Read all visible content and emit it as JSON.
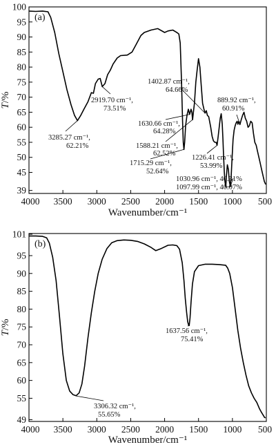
{
  "chart_data": [
    {
      "type": "line",
      "panel_label": "(a)",
      "xlabel": "Wavenumber/cm⁻¹",
      "ylabel_italic": "T",
      "ylabel_unit": "/%",
      "xlim": [
        4000,
        500
      ],
      "ylim": [
        38,
        100
      ],
      "x_reversed": true,
      "grid": false,
      "x_ticks": [
        4000,
        3500,
        3000,
        2500,
        2000,
        1500,
        1000,
        500
      ],
      "y_ticks": [
        39,
        45,
        50,
        55,
        60,
        65,
        70,
        75,
        80,
        85,
        90,
        95,
        100
      ],
      "series": [
        {
          "points": [
            [
              4000,
              98.6
            ],
            [
              3900,
              98.5
            ],
            [
              3800,
              98.6
            ],
            [
              3720,
              98.4
            ],
            [
              3680,
              96.5
            ],
            [
              3620,
              91.5
            ],
            [
              3560,
              84.5
            ],
            [
              3500,
              78.5
            ],
            [
              3440,
              72.5
            ],
            [
              3380,
              67.5
            ],
            [
              3330,
              64.0
            ],
            [
              3285,
              62.2
            ],
            [
              3240,
              63.8
            ],
            [
              3190,
              66.0
            ],
            [
              3130,
              68.5
            ],
            [
              3080,
              71.5
            ],
            [
              3050,
              71.3
            ],
            [
              3020,
              74.5
            ],
            [
              2980,
              76.0
            ],
            [
              2950,
              76.2
            ],
            [
              2919,
              73.5
            ],
            [
              2880,
              74.5
            ],
            [
              2840,
              77.5
            ],
            [
              2800,
              79.0
            ],
            [
              2760,
              81.0
            ],
            [
              2700,
              83.0
            ],
            [
              2650,
              83.8
            ],
            [
              2550,
              84.0
            ],
            [
              2480,
              85.0
            ],
            [
              2420,
              87.5
            ],
            [
              2350,
              90.5
            ],
            [
              2300,
              91.5
            ],
            [
              2200,
              92.3
            ],
            [
              2100,
              92.8
            ],
            [
              2000,
              91.5
            ],
            [
              1950,
              92.0
            ],
            [
              1880,
              92.3
            ],
            [
              1820,
              91.5
            ],
            [
              1790,
              91.0
            ],
            [
              1770,
              88.0
            ],
            [
              1750,
              75.0
            ],
            [
              1735,
              62.0
            ],
            [
              1725,
              55.0
            ],
            [
              1715,
              52.6
            ],
            [
              1705,
              55.0
            ],
            [
              1690,
              60.5
            ],
            [
              1670,
              64.0
            ],
            [
              1650,
              66.0
            ],
            [
              1631,
              64.3
            ],
            [
              1610,
              66.0
            ],
            [
              1598,
              65.0
            ],
            [
              1588,
              62.5
            ],
            [
              1575,
              65.0
            ],
            [
              1560,
              68.0
            ],
            [
              1540,
              75.0
            ],
            [
              1520,
              79.0
            ],
            [
              1500,
              82.8
            ],
            [
              1480,
              80.0
            ],
            [
              1460,
              74.0
            ],
            [
              1440,
              68.0
            ],
            [
              1420,
              66.0
            ],
            [
              1403,
              64.7
            ],
            [
              1385,
              65.5
            ],
            [
              1370,
              64.0
            ],
            [
              1350,
              63.5
            ],
            [
              1320,
              60.0
            ],
            [
              1300,
              57.0
            ],
            [
              1280,
              55.5
            ],
            [
              1260,
              55.0
            ],
            [
              1240,
              55.0
            ],
            [
              1226,
              54.0
            ],
            [
              1210,
              57.0
            ],
            [
              1195,
              60.0
            ],
            [
              1180,
              63.0
            ],
            [
              1165,
              64.5
            ],
            [
              1150,
              61.0
            ],
            [
              1140,
              56.0
            ],
            [
              1130,
              50.0
            ],
            [
              1120,
              45.0
            ],
            [
              1110,
              42.0
            ],
            [
              1098,
              40.1
            ],
            [
              1088,
              44.0
            ],
            [
              1075,
              47.5
            ],
            [
              1060,
              46.0
            ],
            [
              1045,
              42.0
            ],
            [
              1031,
              40.3
            ],
            [
              1018,
              44.0
            ],
            [
              1005,
              50.0
            ],
            [
              990,
              56.0
            ],
            [
              975,
              59.0
            ],
            [
              960,
              60.5
            ],
            [
              945,
              61.5
            ],
            [
              930,
              62.0
            ],
            [
              920,
              61.0
            ],
            [
              905,
              62.0
            ],
            [
              890,
              60.9
            ],
            [
              870,
              62.5
            ],
            [
              850,
              64.0
            ],
            [
              830,
              65.0
            ],
            [
              810,
              63.0
            ],
            [
              790,
              62.0
            ],
            [
              770,
              60.0
            ],
            [
              750,
              60.5
            ],
            [
              730,
              62.0
            ],
            [
              710,
              61.5
            ],
            [
              690,
              58.0
            ],
            [
              670,
              55.0
            ],
            [
              650,
              54.0
            ],
            [
              630,
              52.0
            ],
            [
              610,
              50.0
            ],
            [
              590,
              48.0
            ],
            [
              570,
              46.0
            ],
            [
              550,
              44.0
            ],
            [
              530,
              42.0
            ],
            [
              510,
              41.0
            ]
          ]
        }
      ],
      "annotations": [
        {
          "line1": "3285.27 cm⁻¹,",
          "line2": "62.21%"
        },
        {
          "line1": "2919.70 cm⁻¹,",
          "line2": "73.51%"
        },
        {
          "line1": "1402.87 cm⁻¹,",
          "line2": "64.66%"
        },
        {
          "line1": "1630.66 cm⁻¹,",
          "line2": "64.28%"
        },
        {
          "line1": "1588.21 cm⁻¹,",
          "line2": "62.52%"
        },
        {
          "line1": "1715.29 cm⁻¹,",
          "line2": "52.64%"
        },
        {
          "line1": "1226.41 cm⁻¹,",
          "line2": "53.99%"
        },
        {
          "line1": "889.92 cm⁻¹,",
          "line2": "60.91%"
        },
        {
          "line1": "1030.96 cm⁻¹, 40.31%"
        },
        {
          "line1": "1097.99 cm⁻¹, 40.07%"
        }
      ]
    },
    {
      "type": "line",
      "panel_label": "(b)",
      "xlabel": "Wavenumber/cm⁻¹",
      "ylabel_italic": "T",
      "ylabel_unit": "/%",
      "xlim": [
        4000,
        500
      ],
      "ylim": [
        48.5,
        101.2
      ],
      "x_reversed": true,
      "grid": false,
      "x_ticks": [
        4000,
        3500,
        3000,
        2500,
        2000,
        1500,
        1000,
        500
      ],
      "y_ticks": [
        49,
        55,
        60,
        65,
        70,
        75,
        80,
        85,
        90,
        95,
        101
      ],
      "series": [
        {
          "points": [
            [
              4000,
              100.5
            ],
            [
              3900,
              100.5
            ],
            [
              3800,
              100.4
            ],
            [
              3740,
              100.0
            ],
            [
              3700,
              98.5
            ],
            [
              3650,
              94.5
            ],
            [
              3600,
              88.0
            ],
            [
              3550,
              78.0
            ],
            [
              3500,
              67.5
            ],
            [
              3450,
              60.0
            ],
            [
              3400,
              57.0
            ],
            [
              3350,
              56.0
            ],
            [
              3306,
              55.7
            ],
            [
              3260,
              56.5
            ],
            [
              3220,
              59.0
            ],
            [
              3180,
              64.0
            ],
            [
              3130,
              72.0
            ],
            [
              3080,
              79.0
            ],
            [
              3030,
              85.0
            ],
            [
              2980,
              90.0
            ],
            [
              2920,
              94.0
            ],
            [
              2850,
              97.0
            ],
            [
              2780,
              98.6
            ],
            [
              2700,
              99.2
            ],
            [
              2600,
              99.4
            ],
            [
              2500,
              99.3
            ],
            [
              2400,
              99.0
            ],
            [
              2300,
              98.3
            ],
            [
              2200,
              97.3
            ],
            [
              2130,
              96.4
            ],
            [
              2050,
              97.0
            ],
            [
              1950,
              97.9
            ],
            [
              1880,
              98.0
            ],
            [
              1820,
              97.8
            ],
            [
              1780,
              96.8
            ],
            [
              1740,
              93.0
            ],
            [
              1715,
              88.0
            ],
            [
              1695,
              83.0
            ],
            [
              1675,
              79.0
            ],
            [
              1660,
              76.5
            ],
            [
              1648,
              75.6
            ],
            [
              1637,
              75.4
            ],
            [
              1625,
              77.5
            ],
            [
              1610,
              82.0
            ],
            [
              1590,
              87.0
            ],
            [
              1560,
              90.5
            ],
            [
              1500,
              92.2
            ],
            [
              1400,
              92.6
            ],
            [
              1300,
              92.6
            ],
            [
              1200,
              92.5
            ],
            [
              1100,
              92.3
            ],
            [
              1070,
              91.5
            ],
            [
              1040,
              90.0
            ],
            [
              1000,
              86.0
            ],
            [
              960,
              80.0
            ],
            [
              920,
              74.0
            ],
            [
              880,
              69.0
            ],
            [
              840,
              65.0
            ],
            [
              800,
              61.5
            ],
            [
              760,
              58.5
            ],
            [
              720,
              56.5
            ],
            [
              680,
              55.0
            ],
            [
              640,
              53.8
            ],
            [
              600,
              52.0
            ],
            [
              570,
              51.0
            ],
            [
              545,
              50.2
            ],
            [
              525,
              49.6
            ],
            [
              510,
              49.5
            ]
          ]
        }
      ],
      "annotations": [
        {
          "line1": "1637.56 cm⁻¹,",
          "line2": "75.41%"
        },
        {
          "line1": "3306.32 cm⁻¹,",
          "line2": "55.65%"
        }
      ]
    }
  ]
}
